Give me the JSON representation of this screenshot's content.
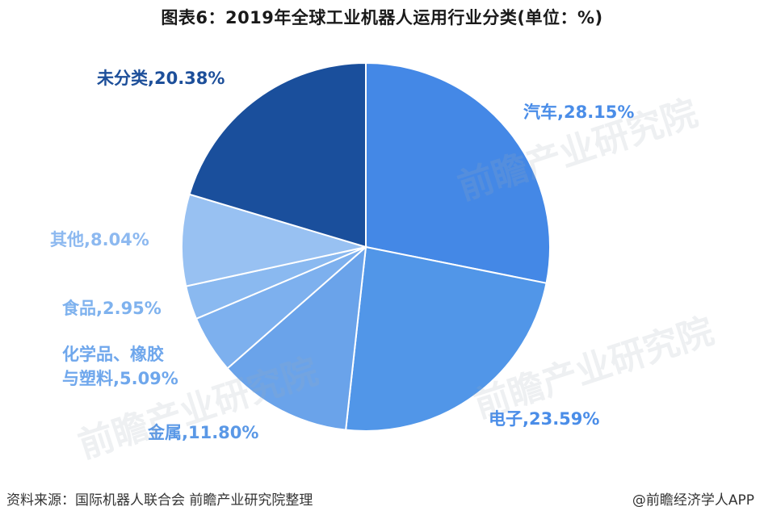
{
  "title": "图表6：2019年全球工业机器人运用行业分类(单位：%)",
  "footer": {
    "source": "资料来源：国际机器人联合会 前瞻产业研究院整理",
    "credit": "@前瞻经济学人APP"
  },
  "watermark_text": "前瞻产业研究院",
  "chart_data": {
    "type": "pie",
    "title": "图表6：2019年全球工业机器人运用行业分类(单位：%)",
    "unit": "%",
    "slices": [
      {
        "label": "汽车",
        "value": 28.15,
        "color": "#4488e6",
        "label_color": "#4a8de8",
        "text": "汽车,28.15%"
      },
      {
        "label": "电子",
        "value": 23.59,
        "color": "#5196e8",
        "label_color": "#4a8de8",
        "text": "电子,23.59%"
      },
      {
        "label": "金属",
        "value": 11.8,
        "color": "#6aa3ea",
        "label_color": "#5a98e6",
        "text": "金属,11.80%"
      },
      {
        "label": "化学品、橡胶与塑料",
        "value": 5.09,
        "color": "#7db0ee",
        "label_color": "#6fa7ec",
        "text": "化学品、橡胶\n与塑料,5.09%"
      },
      {
        "label": "食品",
        "value": 2.95,
        "color": "#8ab9f0",
        "label_color": "#7fb2ee",
        "text": "食品,2.95%"
      },
      {
        "label": "其他",
        "value": 8.04,
        "color": "#98c1f2",
        "label_color": "#8db9f0",
        "text": "其他,8.04%"
      },
      {
        "label": "未分类",
        "value": 20.38,
        "color": "#1a4f9c",
        "label_color": "#1d4f9a",
        "text": "未分类,20.38%"
      }
    ]
  }
}
